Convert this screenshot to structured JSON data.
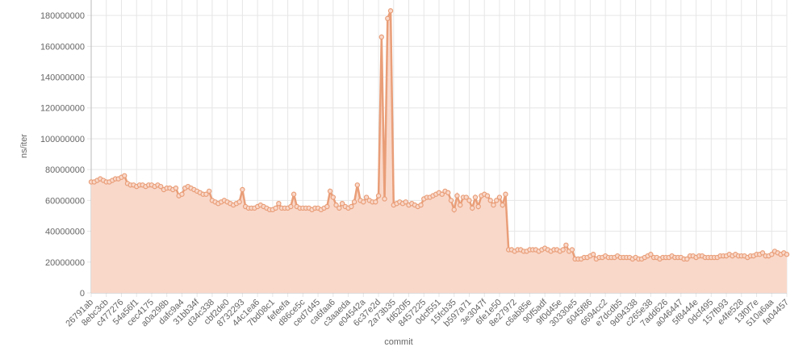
{
  "chart_data": {
    "type": "area",
    "x_label": "commit",
    "y_label": "ns/iter",
    "color": "#e99e78",
    "fill_color": "#f9d8ca",
    "grid": true,
    "ylim": [
      0,
      190000000
    ],
    "yticks": [
      0,
      20000000,
      40000000,
      60000000,
      80000000,
      100000000,
      120000000,
      140000000,
      160000000,
      180000000
    ],
    "categories": [
      "26791ab",
      null,
      null,
      null,
      null,
      "8ebc3cb",
      null,
      null,
      null,
      null,
      "c477276",
      null,
      null,
      null,
      null,
      "54a56f1",
      null,
      null,
      null,
      null,
      "cec4175",
      null,
      null,
      null,
      null,
      "a0a298b",
      null,
      null,
      null,
      null,
      "dafc9a4",
      null,
      null,
      null,
      null,
      "31bb34f",
      null,
      null,
      null,
      null,
      "d34c338",
      null,
      null,
      null,
      null,
      "cbf2de0",
      null,
      null,
      null,
      null,
      "8732293",
      null,
      null,
      null,
      null,
      "44c1ea6",
      null,
      null,
      null,
      null,
      "7bd08c1",
      null,
      null,
      null,
      null,
      "fefeefa",
      null,
      null,
      null,
      null,
      "d86ce5c",
      null,
      null,
      null,
      null,
      "ced7d45",
      null,
      null,
      null,
      null,
      "ca6faa6",
      null,
      null,
      null,
      null,
      "c3aaeda",
      null,
      null,
      null,
      null,
      "e04542a",
      null,
      null,
      null,
      null,
      "6c37e2d",
      null,
      null,
      null,
      null,
      "2a73b35",
      null,
      null,
      null,
      null,
      "fd620f5",
      null,
      null,
      null,
      null,
      "8457225",
      null,
      null,
      null,
      null,
      "0dcf551",
      null,
      null,
      null,
      null,
      "15fcb35",
      null,
      null,
      null,
      null,
      "b597a71",
      null,
      null,
      null,
      null,
      "3e3047f",
      null,
      null,
      null,
      null,
      "6fe1e50",
      null,
      null,
      null,
      null,
      "8e27972",
      null,
      null,
      null,
      null,
      "c6ab85e",
      null,
      null,
      null,
      null,
      "90f5adf",
      null,
      null,
      null,
      null,
      "9f0d45e",
      null,
      null,
      null,
      null,
      "30330e5",
      null,
      null,
      null,
      null,
      "6045f86",
      null,
      null,
      null,
      null,
      "6694cc2",
      null,
      null,
      null,
      null,
      "e7dcdb5",
      null,
      null,
      null,
      null,
      "9d94338",
      null,
      null,
      null,
      null,
      "c265e38",
      null,
      null,
      null,
      null,
      "7add626",
      null,
      null,
      null,
      null,
      "a046447",
      null,
      null,
      null,
      null,
      "5f8444e",
      null,
      null,
      null,
      null,
      "0dcf495",
      null,
      null,
      null,
      null,
      "157fb93",
      null,
      null,
      null,
      null,
      "e4fe528",
      null,
      null,
      null,
      null,
      "13f0f7e",
      null,
      null,
      null,
      null,
      "510a6aa",
      null,
      null,
      null,
      null,
      "fa04457"
    ],
    "values": [
      72000000,
      72000000,
      73000000,
      74000000,
      73000000,
      72000000,
      72000000,
      73000000,
      74000000,
      74000000,
      75000000,
      76000000,
      71000000,
      70000000,
      70000000,
      69000000,
      70000000,
      70000000,
      69000000,
      70000000,
      70000000,
      69000000,
      70000000,
      69000000,
      67000000,
      68000000,
      68000000,
      67000000,
      68000000,
      63000000,
      64000000,
      68000000,
      69000000,
      68000000,
      67000000,
      66000000,
      65000000,
      64000000,
      64000000,
      66000000,
      60000000,
      59000000,
      58000000,
      59000000,
      60000000,
      59000000,
      58000000,
      57000000,
      58000000,
      59000000,
      67000000,
      56000000,
      55000000,
      55000000,
      55000000,
      56000000,
      57000000,
      56000000,
      55000000,
      54000000,
      54000000,
      55000000,
      58000000,
      55000000,
      55000000,
      55000000,
      56000000,
      64000000,
      56000000,
      55000000,
      55000000,
      55000000,
      55000000,
      54000000,
      55000000,
      55000000,
      54000000,
      55000000,
      56000000,
      66000000,
      62000000,
      57000000,
      55000000,
      58000000,
      56000000,
      55000000,
      56000000,
      59000000,
      70000000,
      60000000,
      59000000,
      62000000,
      60000000,
      59000000,
      59000000,
      63000000,
      166000000,
      61000000,
      178000000,
      183000000,
      57000000,
      58000000,
      59000000,
      58000000,
      59000000,
      57000000,
      58000000,
      57000000,
      56000000,
      57000000,
      61000000,
      62000000,
      62000000,
      63000000,
      64000000,
      65000000,
      64000000,
      66000000,
      65000000,
      60000000,
      54000000,
      63000000,
      57000000,
      62000000,
      62000000,
      60000000,
      55000000,
      62000000,
      56000000,
      63000000,
      64000000,
      63000000,
      60000000,
      57000000,
      60000000,
      62000000,
      57000000,
      64000000,
      28000000,
      28000000,
      27000000,
      28000000,
      28000000,
      27000000,
      27000000,
      28000000,
      28000000,
      28000000,
      27000000,
      28000000,
      29000000,
      28000000,
      27000000,
      28000000,
      28000000,
      27000000,
      28000000,
      31000000,
      27000000,
      28000000,
      22000000,
      22000000,
      22000000,
      23000000,
      23000000,
      24000000,
      25000000,
      22000000,
      23000000,
      23000000,
      24000000,
      23000000,
      23000000,
      23000000,
      24000000,
      23000000,
      23000000,
      23000000,
      23000000,
      22000000,
      23000000,
      22000000,
      22000000,
      23000000,
      24000000,
      25000000,
      23000000,
      23000000,
      22000000,
      23000000,
      23000000,
      23000000,
      24000000,
      23000000,
      23000000,
      23000000,
      22000000,
      22000000,
      24000000,
      24000000,
      23000000,
      24000000,
      24000000,
      23000000,
      23000000,
      23000000,
      23000000,
      23000000,
      24000000,
      24000000,
      24000000,
      25000000,
      24000000,
      25000000,
      24000000,
      24000000,
      24000000,
      23000000,
      24000000,
      24000000,
      25000000,
      25000000,
      26000000,
      24000000,
      24000000,
      25000000,
      27000000,
      26000000,
      25000000,
      26000000,
      25000000
    ]
  }
}
